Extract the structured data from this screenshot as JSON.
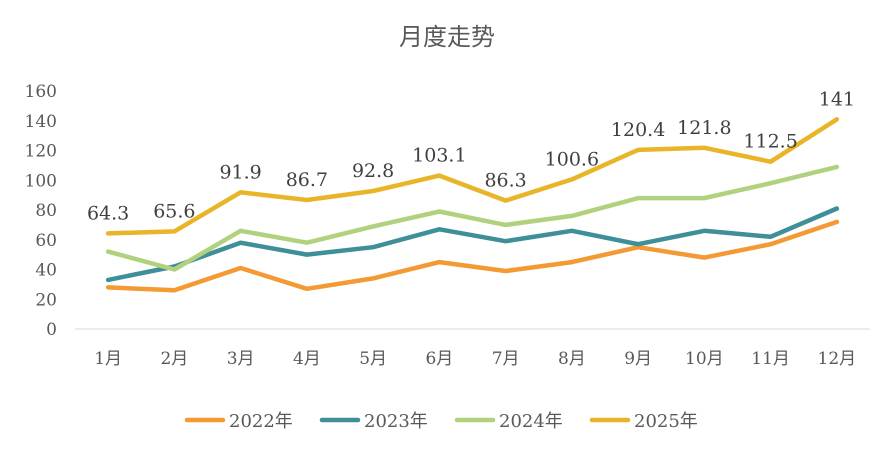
{
  "chart_data": {
    "type": "line",
    "title": "月度走势",
    "xlabel": "",
    "ylabel": "",
    "ylim": [
      0,
      160
    ],
    "yticks": [
      0,
      20,
      40,
      60,
      80,
      100,
      120,
      140,
      160
    ],
    "grid": false,
    "legend_position": "bottom",
    "categories": [
      "1月",
      "2月",
      "3月",
      "4月",
      "5月",
      "6月",
      "7月",
      "8月",
      "9月",
      "10月",
      "11月",
      "12月"
    ],
    "series": [
      {
        "name": "2022年",
        "color": "#F39A35",
        "values": [
          28,
          26,
          41,
          27,
          34,
          45,
          39,
          45,
          55,
          48,
          57,
          72
        ],
        "labels": null
      },
      {
        "name": "2023年",
        "color": "#3F8F99",
        "values": [
          33,
          42,
          58,
          50,
          55,
          67,
          59,
          66,
          57,
          66,
          62,
          81
        ],
        "labels": null
      },
      {
        "name": "2024年",
        "color": "#B1D17E",
        "values": [
          52,
          40,
          66,
          58,
          69,
          79,
          70,
          76,
          88,
          88,
          98,
          109
        ],
        "labels": null
      },
      {
        "name": "2025年",
        "color": "#E9B528",
        "values": [
          64.3,
          65.6,
          91.9,
          86.7,
          92.8,
          103.1,
          86.3,
          100.6,
          120.4,
          121.8,
          112.5,
          141
        ],
        "labels": [
          "64.3",
          "65.6",
          "91.9",
          "86.7",
          "92.8",
          "103.1",
          "86.3",
          "100.6",
          "120.4",
          "121.8",
          "112.5",
          "141"
        ]
      }
    ]
  }
}
